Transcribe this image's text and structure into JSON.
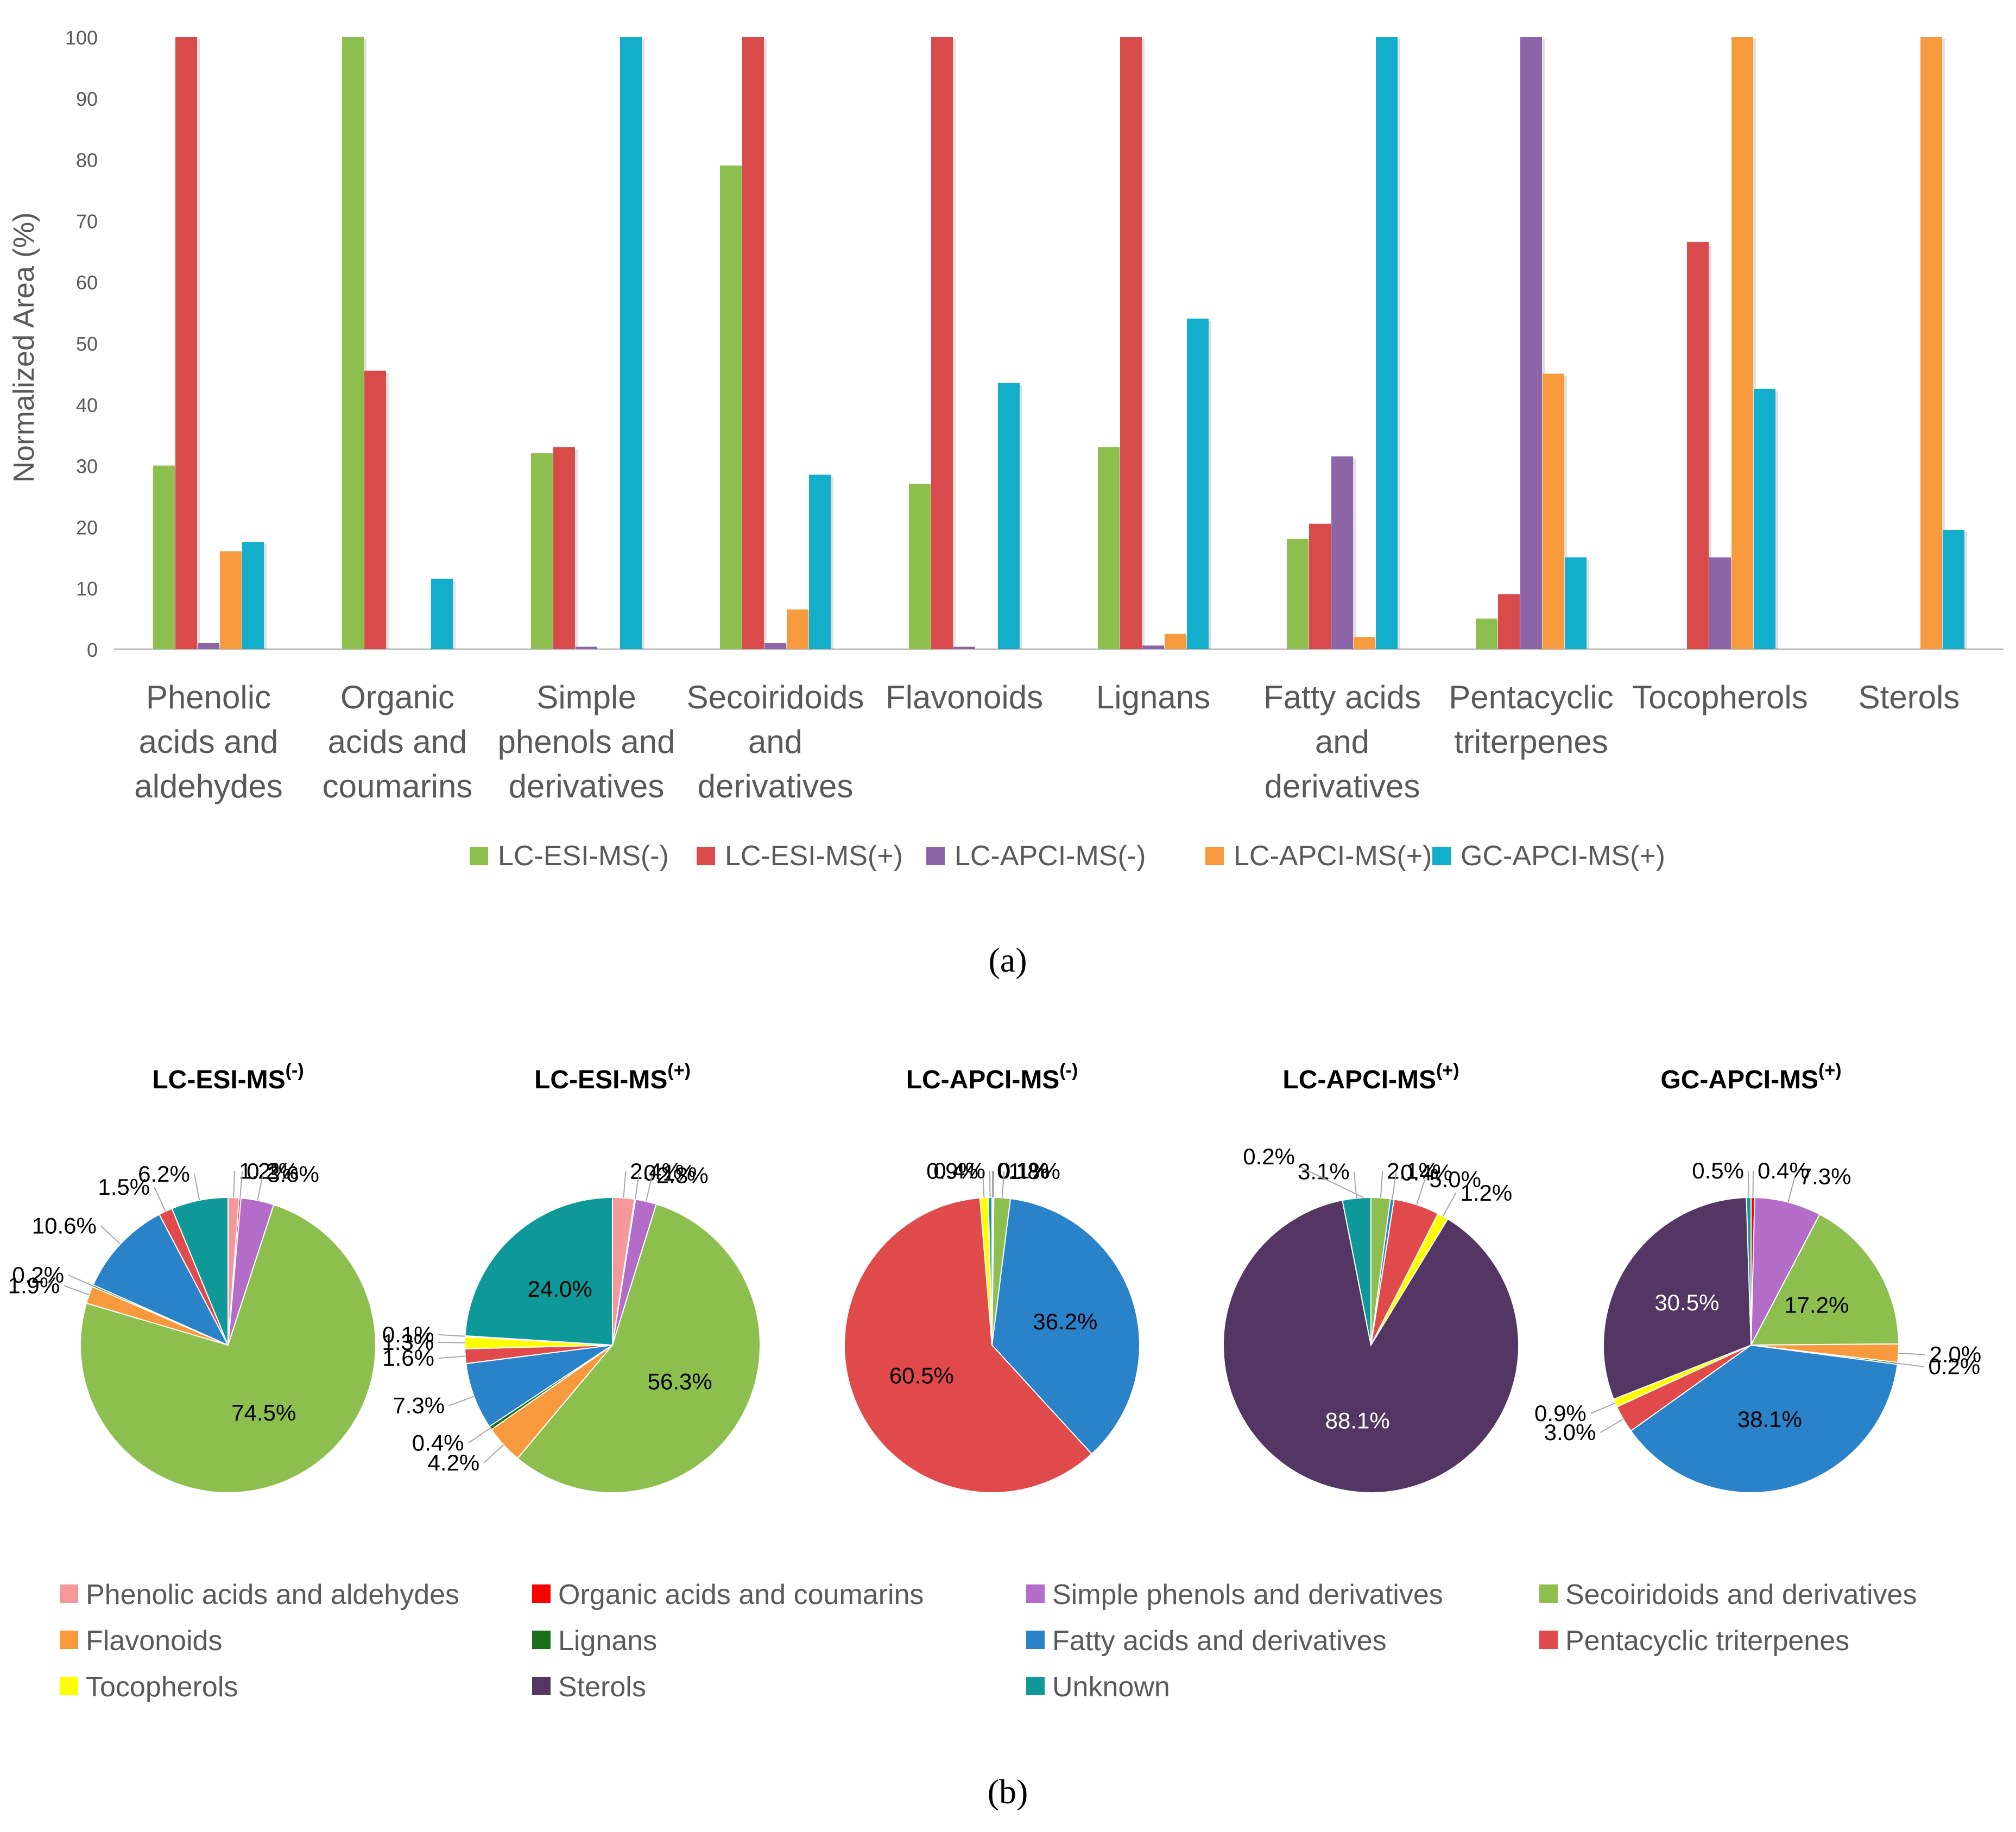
{
  "chart_data": [
    {
      "type": "bar",
      "panel_label": "(a)",
      "ylabel": "Normalized Area (%)",
      "ylim": [
        0,
        100
      ],
      "yticks": [
        0,
        10,
        20,
        30,
        40,
        50,
        60,
        70,
        80,
        90,
        100
      ],
      "grid": false,
      "legend_position": "bottom",
      "categories": [
        [
          "Phenolic",
          "acids and",
          "aldehydes"
        ],
        [
          "Organic",
          "acids and",
          "coumarins"
        ],
        [
          "Simple",
          "phenols and",
          "derivatives"
        ],
        [
          "Secoiridoids",
          "and",
          "derivatives"
        ],
        [
          "Flavonoids"
        ],
        [
          "Lignans"
        ],
        [
          "Fatty acids",
          "and",
          "derivatives"
        ],
        [
          "Pentacyclic",
          "triterpenes"
        ],
        [
          "Tocopherols"
        ],
        [
          "Sterols"
        ]
      ],
      "series": [
        {
          "name": "LC-ESI-MS(-)",
          "color": "#8CBF4E",
          "values": [
            30,
            100,
            32,
            79,
            27,
            33,
            18,
            5,
            0,
            0
          ]
        },
        {
          "name": "LC-ESI-MS(+)",
          "color": "#D94B4B",
          "values": [
            100,
            45.5,
            33,
            100,
            100,
            100,
            20.5,
            9,
            66.5,
            0
          ]
        },
        {
          "name": "LC-APCI-MS(-)",
          "color": "#8E64A8",
          "values": [
            1,
            0,
            0.4,
            1,
            0.4,
            0.6,
            31.5,
            100,
            15,
            0
          ]
        },
        {
          "name": "LC-APCI-MS(+)",
          "color": "#F79A3E",
          "values": [
            16,
            0,
            0,
            6.5,
            0,
            2.5,
            2,
            45,
            100,
            100
          ]
        },
        {
          "name": "GC-APCI-MS(+)",
          "color": "#12AECC",
          "values": [
            17.5,
            11.5,
            100,
            28.5,
            43.5,
            54,
            100,
            15,
            42.5,
            19.5
          ]
        }
      ]
    },
    {
      "type": "pie",
      "panel_label": "(b)",
      "legend_position": "bottom",
      "classes": [
        {
          "name": "Phenolic acids and aldehydes",
          "color": "#F4989A"
        },
        {
          "name": "Organic acids and coumarins",
          "color": "#FF0000"
        },
        {
          "name": "Simple phenols and derivatives",
          "color": "#B36CC8"
        },
        {
          "name": "Secoiridoids and derivatives",
          "color": "#8CBF4E"
        },
        {
          "name": "Flavonoids",
          "color": "#F79A3E"
        },
        {
          "name": "Lignans",
          "color": "#1A6E1A"
        },
        {
          "name": "Fatty acids and derivatives",
          "color": "#2A82C8"
        },
        {
          "name": "Pentacyclic triterpenes",
          "color": "#E04A4A"
        },
        {
          "name": "Tocopherols",
          "color": "#FFFF00"
        },
        {
          "name": "Sterols",
          "color": "#533663"
        },
        {
          "name": "Unknown",
          "color": "#0E9897"
        }
      ],
      "pies": [
        {
          "title_main": "LC-ESI-MS",
          "title_sup": "(-)",
          "values": [
            1.2,
            0.2,
            3.6,
            74.5,
            1.9,
            0.2,
            10.6,
            1.5,
            0,
            0,
            6.2
          ],
          "labels": [
            "1.2%",
            "0.2%",
            "3.6%",
            "74.5%",
            "1.9%",
            "0.2%",
            "10.6%",
            "1.5%",
            null,
            null,
            "6.2%"
          ]
        },
        {
          "title_main": "LC-ESI-MS",
          "title_sup": "(+)",
          "values": [
            2.4,
            0.1,
            2.3,
            56.3,
            4.2,
            0.4,
            7.3,
            1.6,
            1.3,
            0.1,
            24.0
          ],
          "labels": [
            "2.4%",
            "0.1%",
            "2.3%",
            "56.3%",
            "4.2%",
            "0.4%",
            "7.3%",
            "1.6%",
            "1.3%",
            "0.1%",
            "24.0%"
          ]
        },
        {
          "title_main": "LC-APCI-MS",
          "title_sup": "(-)",
          "values": [
            0,
            0.1,
            0.1,
            1.8,
            0,
            0,
            36.2,
            60.5,
            0.9,
            0,
            0.4
          ],
          "labels": [
            null,
            "0.1%",
            "0.1%",
            "1.8%",
            null,
            null,
            "36.2%",
            "60.5%",
            "0.9%",
            null,
            "0.4%"
          ]
        },
        {
          "title_main": "LC-APCI-MS",
          "title_sup": "(+)",
          "values": [
            0,
            0,
            0,
            2.1,
            0,
            0,
            0.4,
            5.0,
            1.2,
            88.1,
            3.1
          ],
          "labels": [
            null,
            null,
            null,
            "2.1%",
            null,
            null,
            "0.4%",
            "5.0%",
            "1.2%",
            "88.1%",
            "3.1%"
          ],
          "extra_labels": [
            "0.2%"
          ]
        },
        {
          "title_main": "GC-APCI-MS",
          "title_sup": "(+)",
          "values": [
            0,
            0.4,
            7.3,
            17.2,
            2.0,
            0.2,
            38.1,
            3.0,
            0.9,
            30.5,
            0.5
          ],
          "labels": [
            null,
            "0.4%",
            "7.3%",
            "17.2%",
            "2.0%",
            "0.2%",
            "38.1%",
            "3.0%",
            "0.9%",
            "30.5%",
            "0.5%"
          ]
        }
      ]
    }
  ]
}
